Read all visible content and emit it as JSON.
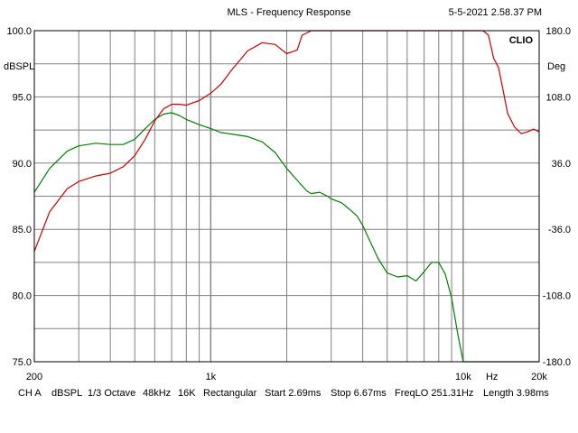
{
  "header": {
    "title": "MLS - Frequency Response",
    "timestamp": "5-5-2021  2.58.37 PM",
    "brand": "CLIO"
  },
  "footer": {
    "channel": "CH A",
    "unit": "dBSPL",
    "smoothing": "1/3 Octave",
    "rate": "48kHz",
    "size": "16K",
    "window": "Rectangular",
    "start": "Start 2.69ms",
    "stop": "Stop 6.67ms",
    "freqlo": "FreqLO 251.31Hz",
    "length": "Length 3.98ms"
  },
  "colors": {
    "magnitude": "#008000",
    "phase": "#cc0000",
    "grid": "#808080",
    "background": "#ffffff"
  },
  "chart_data": {
    "type": "line",
    "x_scale": "log",
    "xlim": [
      200,
      20000
    ],
    "ylim": [
      75,
      100
    ],
    "ylim_right": [
      -180,
      180
    ],
    "ylabel": "dBSPL",
    "ylabel_right": "Deg",
    "xlabel": "Hz",
    "x_tick_labels": [
      {
        "value": 200,
        "label": "200"
      },
      {
        "value": 1000,
        "label": "1k"
      },
      {
        "value": 10000,
        "label": "10k"
      },
      {
        "value": 20000,
        "label": "20k"
      }
    ],
    "x_unit_label_at": 13000,
    "y_tick_labels": [
      {
        "value": 100,
        "label": "100.0"
      },
      {
        "value": 95,
        "label": "95.0"
      },
      {
        "value": 90,
        "label": "90.0"
      },
      {
        "value": 85,
        "label": "85.0"
      },
      {
        "value": 80,
        "label": "80.0"
      },
      {
        "value": 75,
        "label": "75.0"
      }
    ],
    "y_right_tick_labels": [
      {
        "value": 180,
        "label": "180.0"
      },
      {
        "value": 108,
        "label": "108.0"
      },
      {
        "value": 36,
        "label": "36.0"
      },
      {
        "value": -36,
        "label": "-36.0"
      },
      {
        "value": -108,
        "label": "-108.0"
      },
      {
        "value": -180,
        "label": "-180.0"
      }
    ],
    "grid": true,
    "series": [
      {
        "axis": "left",
        "x": [
          200,
          230,
          270,
          300,
          350,
          400,
          450,
          500,
          550,
          600,
          650,
          700,
          750,
          800,
          900,
          1000,
          1100,
          1200,
          1400,
          1600,
          1800,
          2000,
          2200,
          2400,
          2500,
          2700,
          2900,
          3000,
          3300,
          3600,
          3800,
          4000,
          4300,
          4600,
          5000,
          5500,
          6000,
          6500,
          7000,
          7500,
          8000,
          8500,
          9000,
          9500,
          10000,
          10200,
          10500,
          11000,
          12000,
          15000,
          20000
        ],
        "y": [
          87.8,
          89.6,
          90.9,
          91.3,
          91.5,
          91.4,
          91.4,
          91.8,
          92.6,
          93.3,
          93.7,
          93.8,
          93.6,
          93.3,
          92.9,
          92.6,
          92.3,
          92.2,
          92.0,
          91.6,
          90.8,
          89.6,
          88.7,
          87.9,
          87.7,
          87.8,
          87.5,
          87.3,
          87.0,
          86.4,
          86.0,
          85.3,
          84.0,
          82.8,
          81.7,
          81.4,
          81.5,
          81.1,
          81.8,
          82.5,
          82.5,
          81.6,
          79.8,
          77.2,
          75.0,
          75.0,
          75.0,
          75.0,
          75.0,
          75.0,
          75.0
        ]
      },
      {
        "axis": "right",
        "x": [
          200,
          230,
          270,
          300,
          350,
          400,
          450,
          500,
          550,
          600,
          650,
          700,
          750,
          800,
          900,
          1000,
          1100,
          1200,
          1400,
          1600,
          1800,
          2000,
          2200,
          2300,
          2500,
          2700,
          2900,
          3000,
          4000,
          6000,
          8000,
          10000,
          12000,
          12600,
          13200,
          13800,
          14400,
          15000,
          16000,
          17000,
          18000,
          19000,
          20000
        ],
        "y": [
          -60,
          -17,
          8,
          16,
          22,
          25,
          32,
          44,
          62,
          82,
          95,
          100,
          100,
          99,
          104,
          112,
          122,
          136,
          158,
          167,
          165,
          155,
          159,
          175,
          180,
          180,
          180,
          180,
          180,
          180,
          180,
          180,
          180,
          175,
          150,
          140,
          115,
          90,
          75,
          68,
          70,
          73,
          70
        ]
      }
    ]
  }
}
